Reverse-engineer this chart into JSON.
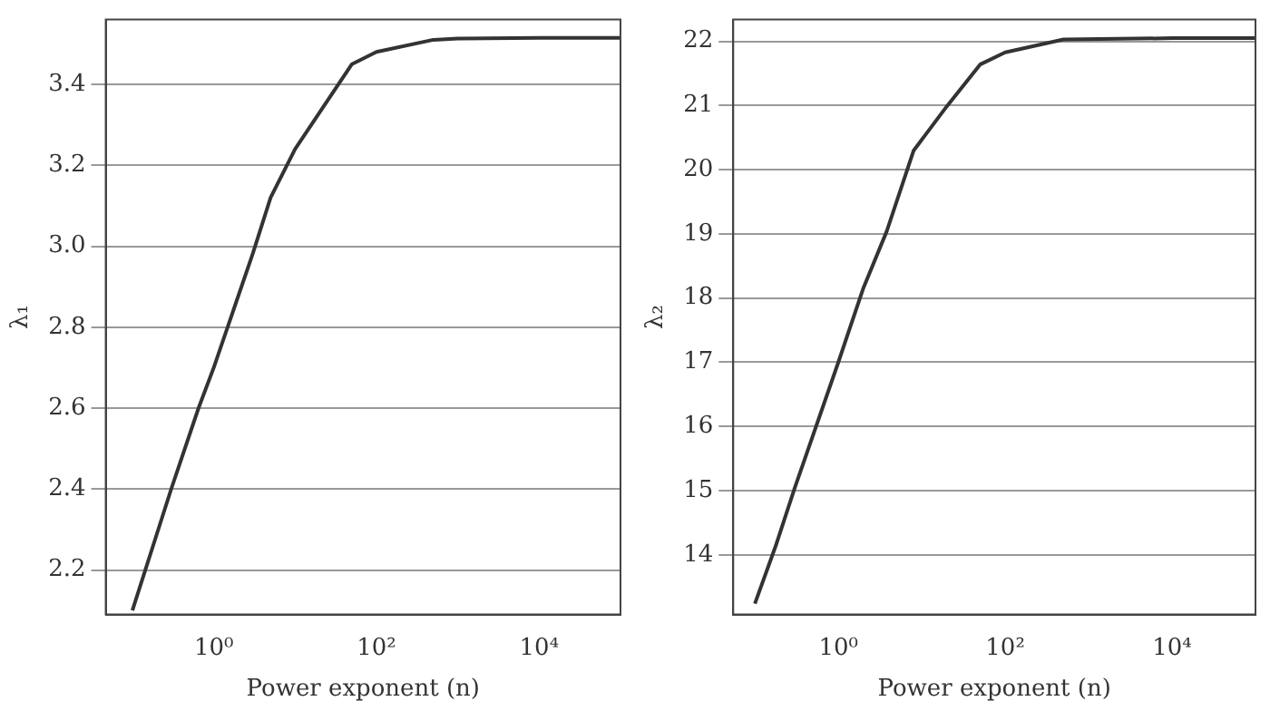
{
  "chart_data": [
    {
      "type": "line",
      "xlabel": "Power exponent (n)",
      "ylabel": "λ₁",
      "log": "x",
      "grid": "y",
      "legend": false,
      "marker": "none",
      "line_style": "solid",
      "x": [
        0.1,
        0.3,
        0.65,
        1,
        3,
        5,
        10,
        50,
        100,
        500,
        1000,
        10000,
        100000
      ],
      "series": [
        {
          "color": "#333333",
          "values": [
            2.1,
            2.4,
            2.6,
            2.7,
            2.98,
            3.12,
            3.24,
            3.45,
            3.48,
            3.51,
            3.513,
            3.515,
            3.515
          ]
        }
      ],
      "xlim": [
        0.047,
        100000
      ],
      "xticks": [
        {
          "value": 1,
          "label": "10⁰"
        },
        {
          "value": 100,
          "label": "10²"
        },
        {
          "value": 10000,
          "label": "10⁴"
        }
      ],
      "ylim": [
        2.09,
        3.56
      ],
      "yticks": [
        {
          "value": 2.2,
          "label": "2.2"
        },
        {
          "value": 2.4,
          "label": "2.4"
        },
        {
          "value": 2.6,
          "label": "2.6"
        },
        {
          "value": 2.8,
          "label": "2.8"
        },
        {
          "value": 3.0,
          "label": "3.0"
        },
        {
          "value": 3.2,
          "label": "3.2"
        },
        {
          "value": 3.4,
          "label": "3.4"
        }
      ]
    },
    {
      "type": "line",
      "xlabel": "Power exponent (n)",
      "ylabel": "λ₂",
      "log": "x",
      "grid": "y",
      "legend": false,
      "marker": "none",
      "line_style": "solid",
      "x": [
        0.1,
        0.18,
        0.3,
        1,
        2,
        3.8,
        8,
        20,
        50,
        100,
        500,
        10000,
        100000
      ],
      "series": [
        {
          "color": "#333333",
          "values": [
            13.24,
            14.16,
            15.04,
            17,
            18.16,
            19.04,
            20.3,
            20.99,
            21.64,
            21.83,
            22.03,
            22.05,
            22.05
          ]
        }
      ],
      "xlim": [
        0.055,
        100000
      ],
      "xticks": [
        {
          "value": 1,
          "label": "10⁰"
        },
        {
          "value": 100,
          "label": "10²"
        },
        {
          "value": 10000,
          "label": "10⁴"
        }
      ],
      "ylim": [
        13.07,
        22.34
      ],
      "yticks": [
        14,
        15,
        16,
        17,
        18,
        19,
        20,
        21,
        22
      ]
    }
  ]
}
